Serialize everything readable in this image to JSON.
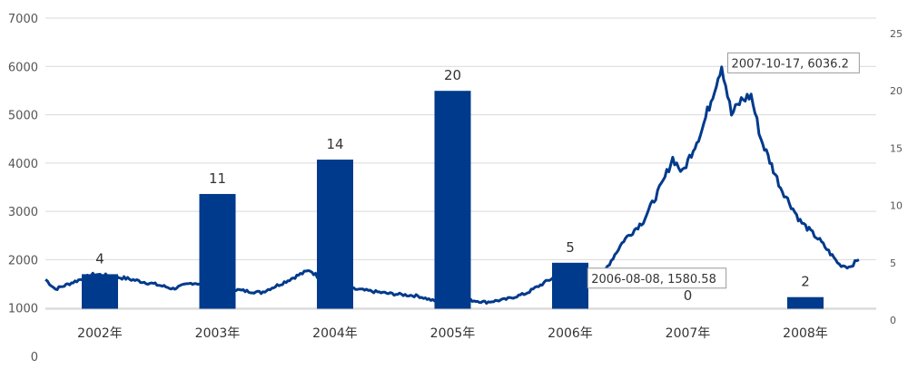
{
  "chart_data": {
    "type": "bar+line",
    "categories": [
      "2002年",
      "2003年",
      "2004年",
      "2005年",
      "2006年",
      "2007年",
      "2008年"
    ],
    "y_left": {
      "ticks": [
        "0",
        "1000",
        "2000",
        "3000",
        "4000",
        "5000",
        "6000",
        "7000"
      ],
      "ylim": [
        0,
        7000
      ]
    },
    "y_right": {
      "ticks": [
        "0",
        "5",
        "10",
        "15",
        "20",
        "25"
      ],
      "ylim": [
        0,
        25
      ]
    },
    "bars": {
      "axis": "right",
      "values": [
        4,
        11,
        14,
        20,
        5,
        0,
        2
      ],
      "color": "#003a8c"
    },
    "line": {
      "axis": "left",
      "color": "#003a8c",
      "points": [
        [
          "2002-01",
          1590
        ],
        [
          "2002-02",
          1390
        ],
        [
          "2002-04",
          1550
        ],
        [
          "2002-06",
          1700
        ],
        [
          "2002-09",
          1620
        ],
        [
          "2002-12",
          1500
        ],
        [
          "2003-02",
          1400
        ],
        [
          "2003-04",
          1520
        ],
        [
          "2003-06",
          1480
        ],
        [
          "2003-09",
          1360
        ],
        [
          "2003-11",
          1320
        ],
        [
          "2004-01",
          1500
        ],
        [
          "2004-03",
          1700
        ],
        [
          "2004-04",
          1780
        ],
        [
          "2004-06",
          1450
        ],
        [
          "2004-09",
          1380
        ],
        [
          "2004-12",
          1300
        ],
        [
          "2005-03",
          1250
        ],
        [
          "2005-06",
          1060
        ],
        [
          "2005-08",
          1170
        ],
        [
          "2005-10",
          1120
        ],
        [
          "2005-12",
          1180
        ],
        [
          "2006-02",
          1300
        ],
        [
          "2006-05",
          1650
        ],
        [
          "2006-08",
          1580.58
        ],
        [
          "2006-10",
          1750
        ],
        [
          "2006-12",
          2400
        ],
        [
          "2007-02",
          2800
        ],
        [
          "2007-04",
          3600
        ],
        [
          "2007-05",
          4100
        ],
        [
          "2007-06",
          3800
        ],
        [
          "2007-08",
          4700
        ],
        [
          "2007-10",
          6036.2
        ],
        [
          "2007-11",
          5000
        ],
        [
          "2007-12",
          5300
        ],
        [
          "2008-01",
          5400
        ],
        [
          "2008-02",
          4500
        ],
        [
          "2008-04",
          3500
        ],
        [
          "2008-06",
          2800
        ],
        [
          "2008-08",
          2400
        ],
        [
          "2008-10",
          1900
        ],
        [
          "2008-11",
          1850
        ],
        [
          "2008-12",
          2000
        ]
      ]
    },
    "annotations": [
      {
        "date": "2007-10-17",
        "value": 6036.2,
        "text": "2007-10-17, 6036.2"
      },
      {
        "date": "2006-08-08",
        "value": 1580.58,
        "text": "2006-08-08, 1580.58"
      }
    ],
    "grid": true
  }
}
